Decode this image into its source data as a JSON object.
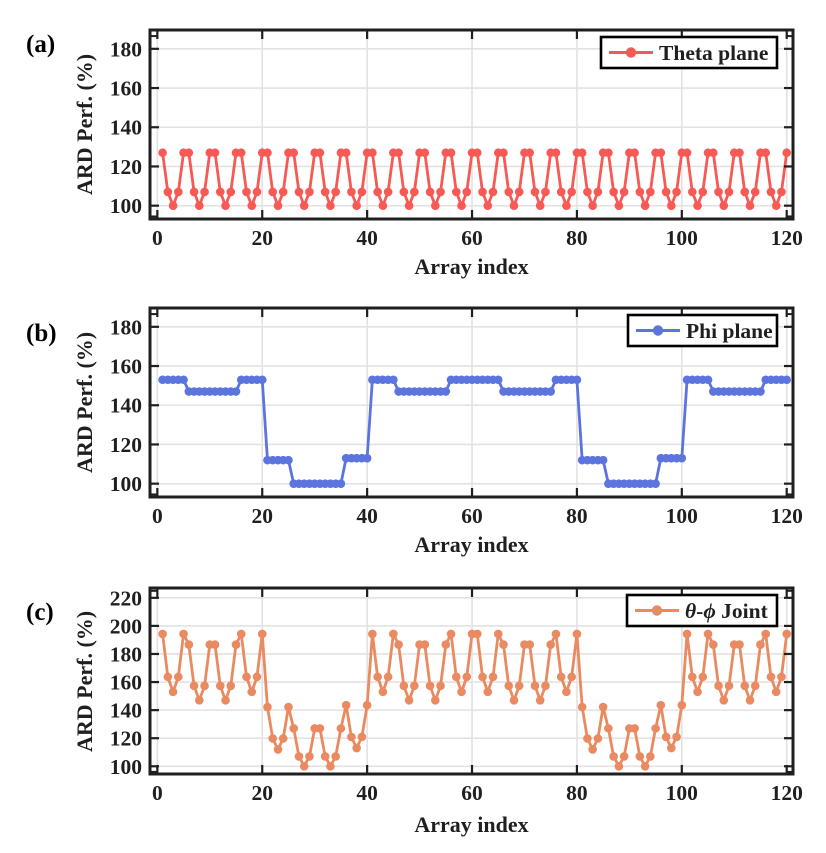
{
  "figure": {
    "background": "#ffffff",
    "axis_color": "#1f1f1f",
    "grid_color": "#e2e2e2"
  },
  "chart_data": [
    {
      "panel_tag": "(a)",
      "type": "line",
      "title": "",
      "xlabel": "Array index",
      "ylabel": "ARD Perf. (%)",
      "legend": {
        "label": "Theta plane",
        "position": "top-right"
      },
      "color": "#f75955",
      "marker": "circle",
      "grid": true,
      "x": {
        "start": 1,
        "step": 1,
        "count": 120
      },
      "xlim": [
        -1.4,
        121.2
      ],
      "ylim": [
        93.2,
        189.6
      ],
      "x_ticks": [
        0,
        20,
        40,
        60,
        80,
        100,
        120
      ],
      "y_ticks": [
        100,
        120,
        140,
        160,
        180
      ],
      "y_minor_ticks": [
        94.5,
        186.5
      ],
      "values": [
        127,
        107,
        100,
        107,
        127,
        127,
        107,
        100,
        107,
        127,
        127,
        107,
        100,
        107,
        127,
        127,
        107,
        100,
        107,
        127,
        127,
        107,
        100,
        107,
        127,
        127,
        107,
        100,
        107,
        127,
        127,
        107,
        100,
        107,
        127,
        127,
        107,
        100,
        107,
        127,
        127,
        107,
        100,
        107,
        127,
        127,
        107,
        100,
        107,
        127,
        127,
        107,
        100,
        107,
        127,
        127,
        107,
        100,
        107,
        127,
        127,
        107,
        100,
        107,
        127,
        127,
        107,
        100,
        107,
        127,
        127,
        107,
        100,
        107,
        127,
        127,
        107,
        100,
        107,
        127,
        127,
        107,
        100,
        107,
        127,
        127,
        107,
        100,
        107,
        127,
        127,
        107,
        100,
        107,
        127,
        127,
        107,
        100,
        107,
        127,
        127,
        107,
        100,
        107,
        127,
        127,
        107,
        100,
        107,
        127,
        127,
        107,
        100,
        107,
        127,
        127,
        107,
        100,
        107,
        127
      ]
    },
    {
      "panel_tag": "(b)",
      "type": "line",
      "title": "",
      "xlabel": "Array index",
      "ylabel": "ARD Perf. (%)",
      "legend": {
        "label": "Phi plane",
        "position": "top-right"
      },
      "color": "#5c74dd",
      "marker": "circle",
      "grid": true,
      "x": {
        "start": 1,
        "step": 1,
        "count": 120
      },
      "xlim": [
        -1.4,
        121.2
      ],
      "ylim": [
        93.2,
        189.6
      ],
      "x_ticks": [
        0,
        20,
        40,
        60,
        80,
        100,
        120
      ],
      "y_ticks": [
        100,
        120,
        140,
        160,
        180
      ],
      "y_minor_ticks": [
        94.5,
        186.5
      ],
      "values": [
        153,
        153,
        153,
        153,
        153,
        147,
        147,
        147,
        147,
        147,
        147,
        147,
        147,
        147,
        147,
        153,
        153,
        153,
        153,
        153,
        112,
        112,
        112,
        112,
        112,
        100,
        100,
        100,
        100,
        100,
        100,
        100,
        100,
        100,
        100,
        113,
        113,
        113,
        113,
        113,
        153,
        153,
        153,
        153,
        153,
        147,
        147,
        147,
        147,
        147,
        147,
        147,
        147,
        147,
        147,
        153,
        153,
        153,
        153,
        153,
        153,
        153,
        153,
        153,
        153,
        147,
        147,
        147,
        147,
        147,
        147,
        147,
        147,
        147,
        147,
        153,
        153,
        153,
        153,
        153,
        112,
        112,
        112,
        112,
        112,
        100,
        100,
        100,
        100,
        100,
        100,
        100,
        100,
        100,
        100,
        113,
        113,
        113,
        113,
        113,
        153,
        153,
        153,
        153,
        153,
        147,
        147,
        147,
        147,
        147,
        147,
        147,
        147,
        147,
        147,
        153,
        153,
        153,
        153,
        153
      ]
    },
    {
      "panel_tag": "(c)",
      "type": "line",
      "title": "",
      "xlabel": "Array index",
      "ylabel": "ARD Perf. (%)",
      "legend": {
        "label": "θ-ϕ Joint",
        "position": "top-right"
      },
      "color": "#e98a61",
      "marker": "circle",
      "grid": true,
      "x": {
        "start": 1,
        "step": 1,
        "count": 120
      },
      "xlim": [
        -1.4,
        121.2
      ],
      "ylim": [
        94.5,
        227
      ],
      "x_ticks": [
        0,
        20,
        40,
        60,
        80,
        100,
        120
      ],
      "y_ticks": [
        100,
        120,
        140,
        160,
        180,
        200,
        220
      ],
      "y_minor_ticks": [
        96,
        225
      ],
      "values": [
        194.3,
        163.7,
        153,
        163.7,
        194.3,
        186.7,
        157.3,
        147,
        157.3,
        186.7,
        186.7,
        157.3,
        147,
        157.3,
        186.7,
        194.3,
        163.7,
        153,
        163.7,
        194.3,
        142.2,
        119.8,
        112,
        119.8,
        142.2,
        127,
        107,
        100,
        107,
        127,
        127,
        107,
        100,
        107,
        127,
        143.5,
        120.9,
        113,
        120.9,
        143.5,
        194.3,
        163.7,
        153,
        163.7,
        194.3,
        186.7,
        157.3,
        147,
        157.3,
        186.7,
        186.7,
        157.3,
        147,
        157.3,
        186.7,
        194.3,
        163.7,
        153,
        163.7,
        194.3,
        194.3,
        163.7,
        153,
        163.7,
        194.3,
        186.7,
        157.3,
        147,
        157.3,
        186.7,
        186.7,
        157.3,
        147,
        157.3,
        186.7,
        194.3,
        163.7,
        153,
        163.7,
        194.3,
        142.2,
        119.8,
        112,
        119.8,
        142.2,
        127,
        107,
        100,
        107,
        127,
        127,
        107,
        100,
        107,
        127,
        143.5,
        120.9,
        113,
        120.9,
        143.5,
        194.3,
        163.7,
        153,
        163.7,
        194.3,
        186.7,
        157.3,
        147,
        157.3,
        186.7,
        186.7,
        157.3,
        147,
        157.3,
        186.7,
        194.3,
        163.7,
        153,
        163.7,
        194.3
      ]
    }
  ]
}
